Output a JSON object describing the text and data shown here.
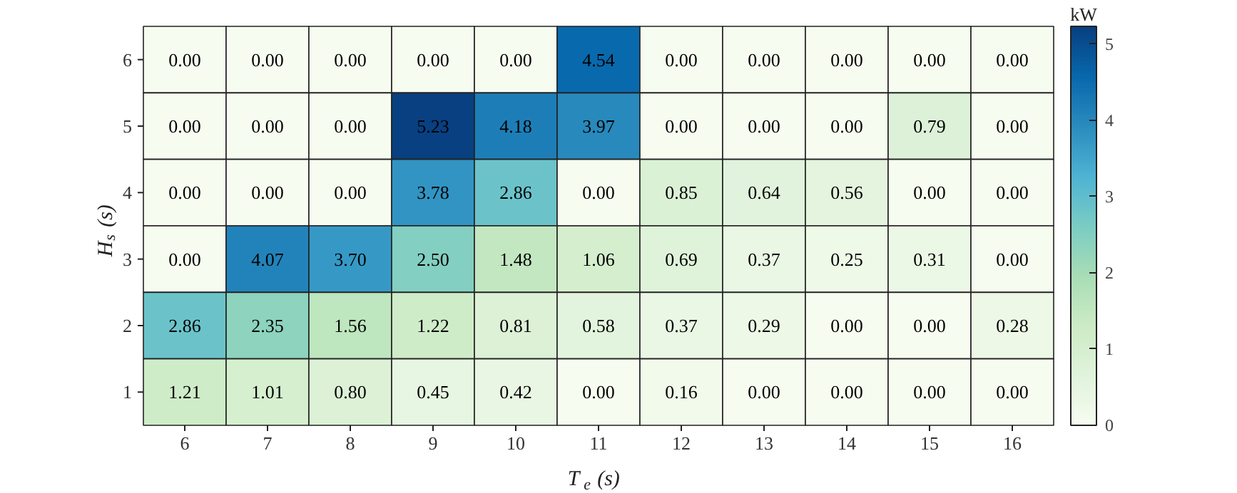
{
  "chart_data": {
    "type": "heatmap",
    "xlabel": "T$_{e}$ (s)",
    "ylabel": "H$_{s}$ (s)",
    "clabel": "kW",
    "categories": [
      "6",
      "7",
      "8",
      "9",
      "10",
      "11",
      "12",
      "13",
      "14",
      "15",
      "16"
    ],
    "y_categories": [
      "6",
      "5",
      "4",
      "3",
      "2",
      "1"
    ],
    "cells": [
      [
        0,
        0,
        0,
        0,
        0,
        4.54,
        0,
        0,
        0,
        0,
        0
      ],
      [
        0,
        0,
        0,
        5.23,
        4.18,
        3.97,
        0,
        0,
        0,
        0.79,
        0
      ],
      [
        0,
        0,
        0,
        3.78,
        2.86,
        0,
        0.85,
        0.64,
        0.56,
        0,
        0
      ],
      [
        0,
        4.07,
        3.7,
        2.5,
        1.48,
        1.06,
        0.69,
        0.37,
        0.25,
        0.31,
        0
      ],
      [
        2.86,
        2.35,
        1.56,
        1.22,
        0.81,
        0.58,
        0.37,
        0.29,
        0,
        0,
        0.28
      ],
      [
        1.21,
        1.01,
        0.8,
        0.45,
        0.42,
        0,
        0.16,
        0,
        0,
        0,
        0
      ]
    ],
    "cell_labels": [
      [
        "0.00",
        "0.00",
        "0.00",
        "0.00",
        "0.00",
        "4.54",
        "0.00",
        "0.00",
        "0.00",
        "0.00",
        "0.00"
      ],
      [
        "0.00",
        "0.00",
        "0.00",
        "5.23",
        "4.18",
        "3.97",
        "0.00",
        "0.00",
        "0.00",
        "0.79",
        "0.00"
      ],
      [
        "0.00",
        "0.00",
        "0.00",
        "3.78",
        "2.86",
        "0.00",
        "0.85",
        "0.64",
        "0.56",
        "0.00",
        "0.00"
      ],
      [
        "0.00",
        "4.07",
        "3.70",
        "2.50",
        "1.48",
        "1.06",
        "0.69",
        "0.37",
        "0.25",
        "0.31",
        "0.00"
      ],
      [
        "2.86",
        "2.35",
        "1.56",
        "1.22",
        "0.81",
        "0.58",
        "0.37",
        "0.29",
        "0.00",
        "0.00",
        "0.28"
      ],
      [
        "1.21",
        "1.01",
        "0.80",
        "0.45",
        "0.42",
        "0.00",
        "0.16",
        "0.00",
        "0.00",
        "0.00",
        "0.00"
      ]
    ],
    "clim": [
      0,
      5.23
    ],
    "cticks": [
      0,
      1,
      2,
      3,
      4,
      5
    ]
  }
}
